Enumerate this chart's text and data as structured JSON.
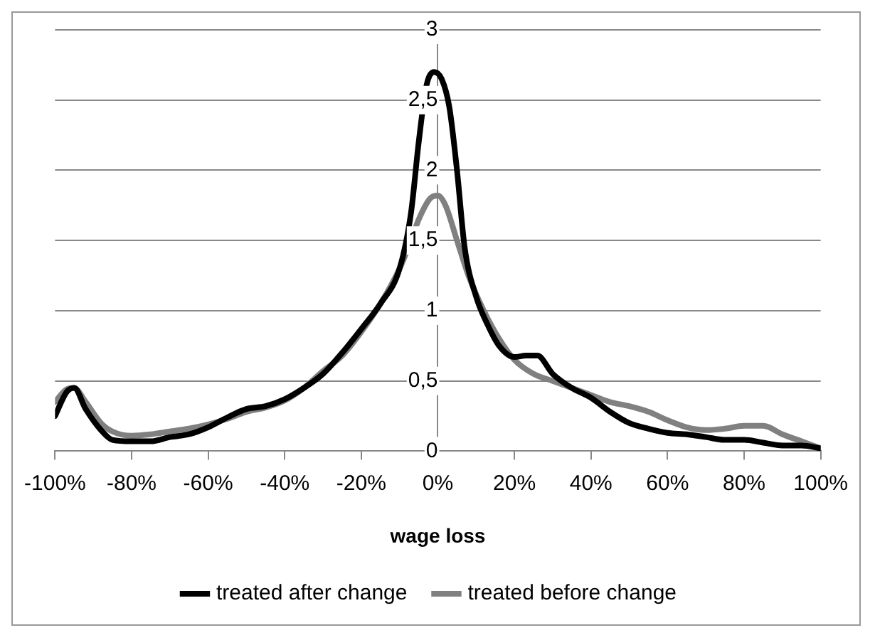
{
  "chart_data": {
    "type": "line",
    "xlabel": "wage loss",
    "xlim": [
      -100,
      100
    ],
    "xticks": [
      {
        "value": -100,
        "label": "-100%"
      },
      {
        "value": -80,
        "label": "-80%"
      },
      {
        "value": -60,
        "label": "-60%"
      },
      {
        "value": -40,
        "label": "-40%"
      },
      {
        "value": -20,
        "label": "-20%"
      },
      {
        "value": 0,
        "label": "0%"
      },
      {
        "value": 20,
        "label": "20%"
      },
      {
        "value": 40,
        "label": "40%"
      },
      {
        "value": 60,
        "label": "60%"
      },
      {
        "value": 80,
        "label": "80%"
      },
      {
        "value": 100,
        "label": "100%"
      }
    ],
    "ylim": [
      0,
      3
    ],
    "yticks": [
      0,
      {
        "value": 0.5,
        "label": "0,5"
      },
      1,
      {
        "value": 1.5,
        "label": "1,5"
      },
      2,
      {
        "value": 2.5,
        "label": "2,5"
      },
      3
    ],
    "grid": "y",
    "legend": "bottom",
    "marker": "none",
    "line_style": "solid",
    "series": [
      {
        "name": "treated after change",
        "color": "#000000",
        "x": [
          -100,
          -97,
          -95,
          -92,
          -88,
          -85,
          -80,
          -75,
          -70,
          -65,
          -60,
          -55,
          -50,
          -45,
          -40,
          -35,
          -30,
          -25,
          -20,
          -15,
          -10,
          -7,
          -5,
          -3,
          -1,
          1,
          3,
          5,
          7,
          10,
          13,
          16,
          20,
          23,
          26,
          30,
          35,
          40,
          45,
          50,
          55,
          60,
          65,
          70,
          75,
          80,
          85,
          90,
          95,
          100
        ],
        "values": [
          0.25,
          0.42,
          0.45,
          0.3,
          0.15,
          0.08,
          0.07,
          0.07,
          0.1,
          0.12,
          0.17,
          0.24,
          0.3,
          0.32,
          0.37,
          0.45,
          0.55,
          0.7,
          0.87,
          1.05,
          1.3,
          1.7,
          2.2,
          2.6,
          2.7,
          2.65,
          2.45,
          2.0,
          1.45,
          1.1,
          0.9,
          0.75,
          0.67,
          0.68,
          0.68,
          0.55,
          0.45,
          0.38,
          0.28,
          0.2,
          0.16,
          0.13,
          0.12,
          0.1,
          0.08,
          0.08,
          0.06,
          0.04,
          0.04,
          0.02
        ]
      },
      {
        "name": "treated before change",
        "color": "#808080",
        "x": [
          -100,
          -97,
          -95,
          -92,
          -88,
          -85,
          -80,
          -75,
          -70,
          -65,
          -60,
          -55,
          -50,
          -45,
          -40,
          -35,
          -30,
          -25,
          -20,
          -15,
          -10,
          -7,
          -5,
          -2,
          0,
          2,
          5,
          8,
          12,
          16,
          20,
          25,
          30,
          35,
          40,
          45,
          50,
          55,
          60,
          65,
          70,
          75,
          80,
          85,
          90,
          95,
          100
        ],
        "values": [
          0.35,
          0.44,
          0.45,
          0.35,
          0.2,
          0.14,
          0.11,
          0.12,
          0.14,
          0.16,
          0.19,
          0.23,
          0.28,
          0.31,
          0.36,
          0.45,
          0.57,
          0.68,
          0.85,
          1.05,
          1.3,
          1.5,
          1.65,
          1.8,
          1.82,
          1.75,
          1.5,
          1.25,
          1.0,
          0.8,
          0.65,
          0.55,
          0.5,
          0.45,
          0.4,
          0.35,
          0.32,
          0.28,
          0.22,
          0.17,
          0.15,
          0.16,
          0.18,
          0.18,
          0.12,
          0.07,
          0.02
        ]
      }
    ]
  }
}
